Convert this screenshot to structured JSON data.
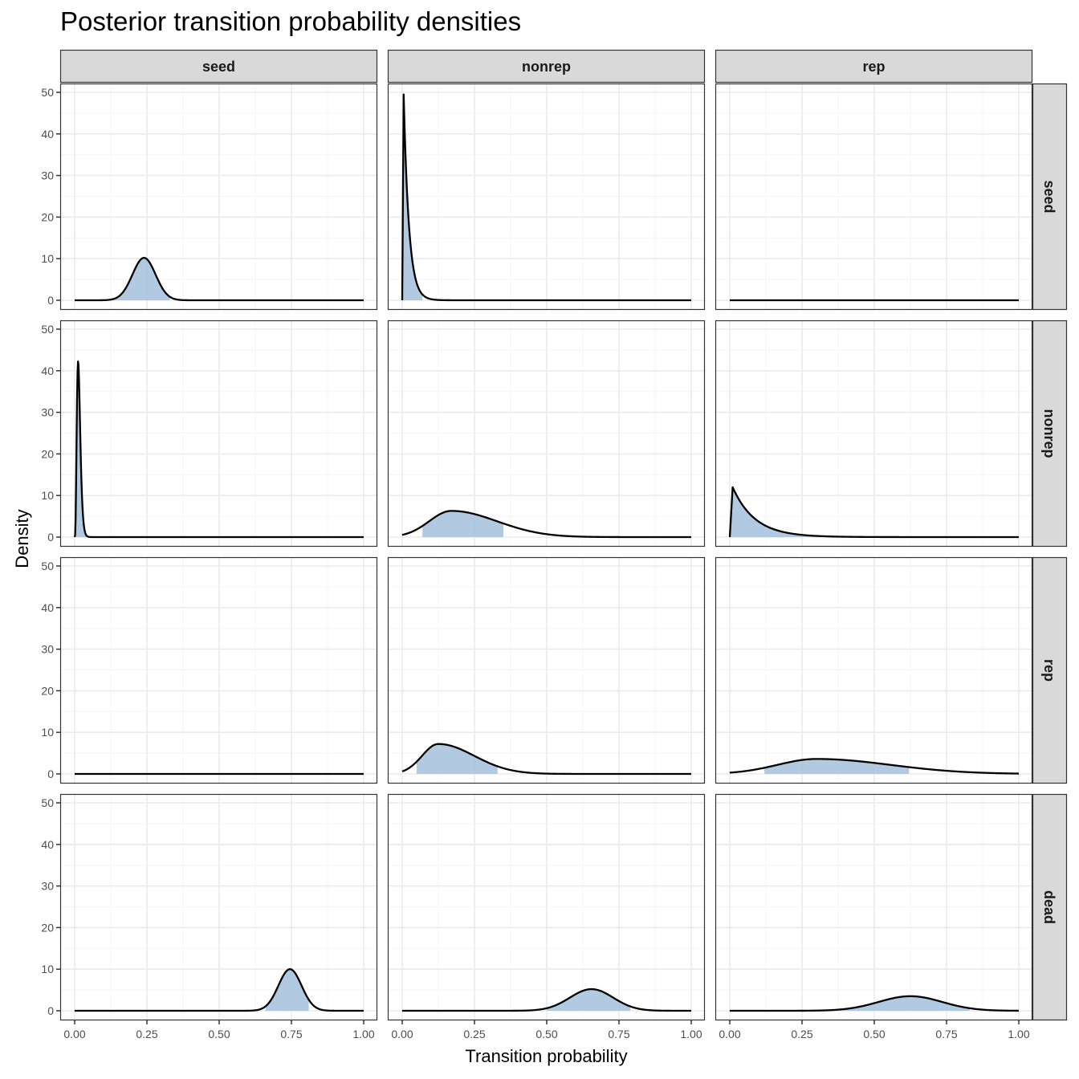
{
  "title": "Posterior transition probability densities",
  "xlabel": "Transition probability",
  "ylabel": "Density",
  "colors": {
    "fill": "#a5c1dc",
    "line": "#000000",
    "strip_bg": "#d9d9d9",
    "grid_major": "#ebebeb",
    "grid_minor": "#f5f5f5",
    "panel_border": "#333333"
  },
  "chart_data": {
    "type": "area",
    "title": "Posterior transition probability densities",
    "xlabel": "Transition probability",
    "ylabel": "Density",
    "xlim": [
      0,
      1
    ],
    "ylim": [
      0,
      50
    ],
    "x_ticks": [
      "0.00",
      "0.25",
      "0.50",
      "0.75",
      "1.00"
    ],
    "y_ticks": [
      "0",
      "10",
      "20",
      "30",
      "40",
      "50"
    ],
    "grid": true,
    "facet_columns": [
      "seed",
      "nonrep",
      "rep"
    ],
    "facet_rows": [
      "seed",
      "nonrep",
      "rep",
      "dead"
    ],
    "panels": [
      {
        "col": "seed",
        "row": "seed",
        "shape": "bell",
        "mode": 0.24,
        "peak": 10.2,
        "sd": 0.04,
        "shade": [
          0.1,
          0.33
        ]
      },
      {
        "col": "nonrep",
        "row": "seed",
        "shape": "decay",
        "mode": 0.005,
        "peak": 49.5,
        "rate": 55,
        "shade": [
          0.0,
          0.07
        ]
      },
      {
        "col": "rep",
        "row": "seed",
        "shape": "flat",
        "mode": null,
        "peak": 0,
        "shade": null
      },
      {
        "col": "seed",
        "row": "nonrep",
        "shape": "spike",
        "mode": 0.012,
        "peak": 42.3,
        "shade": [
          0.0,
          0.05
        ]
      },
      {
        "col": "nonrep",
        "row": "nonrep",
        "shape": "skew",
        "mode": 0.17,
        "peak": 6.3,
        "shade": [
          0.07,
          0.35
        ]
      },
      {
        "col": "rep",
        "row": "nonrep",
        "shape": "decay",
        "mode": 0.01,
        "peak": 12.0,
        "rate": 13,
        "shade": [
          0.0,
          0.3
        ]
      },
      {
        "col": "seed",
        "row": "rep",
        "shape": "flat",
        "mode": null,
        "peak": 0,
        "shade": null
      },
      {
        "col": "nonrep",
        "row": "rep",
        "shape": "skew",
        "mode": 0.125,
        "peak": 7.2,
        "shade": [
          0.05,
          0.33
        ]
      },
      {
        "col": "rep",
        "row": "rep",
        "shape": "skew",
        "mode": 0.3,
        "peak": 3.6,
        "shade": [
          0.12,
          0.62
        ]
      },
      {
        "col": "seed",
        "row": "dead",
        "shape": "bell",
        "mode": 0.745,
        "peak": 10.0,
        "sd": 0.04,
        "shade": [
          0.66,
          0.81
        ]
      },
      {
        "col": "nonrep",
        "row": "dead",
        "shape": "bell",
        "mode": 0.655,
        "peak": 5.2,
        "sd": 0.075,
        "shade": [
          0.5,
          0.79
        ]
      },
      {
        "col": "rep",
        "row": "dead",
        "shape": "bell",
        "mode": 0.625,
        "peak": 3.5,
        "sd": 0.11,
        "shade": [
          0.38,
          0.83
        ]
      }
    ]
  }
}
